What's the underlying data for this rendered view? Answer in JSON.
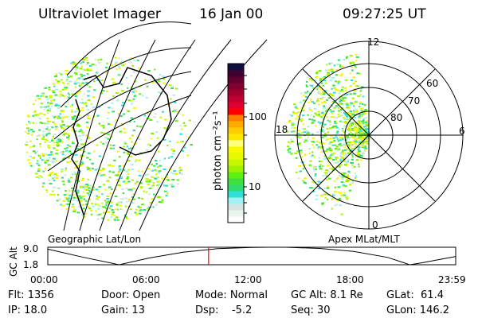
{
  "header": {
    "instrument": "Ultraviolet Imager",
    "date": "16 Jan 00",
    "time": "09:27:25 UT"
  },
  "colorbar": {
    "label": "photon cm⁻²s⁻¹",
    "ticks": [
      "100",
      "10"
    ],
    "colors": [
      "#ffffff",
      "#e8f4ee",
      "#d4e4e2",
      "#a0f0f4",
      "#30e0d8",
      "#30dc70",
      "#40e040",
      "#60f010",
      "#a0f000",
      "#c8f800",
      "#e8f800",
      "#f8f800",
      "#ffff80",
      "#ffe800",
      "#ffcc00",
      "#ffaa00",
      "#ff8000",
      "#ff0000",
      "#e00030",
      "#c00030",
      "#a00030",
      "#800030",
      "#600030",
      "#400030",
      "#101040"
    ]
  },
  "left_panel": {
    "label": "Geographic Lat/Lon"
  },
  "right_panel": {
    "label": "Apex MLat/MLT",
    "mlt_labels": [
      "12",
      "6",
      "0",
      "18"
    ],
    "mlat_labels": [
      "60",
      "70",
      "80"
    ]
  },
  "chart_data": {
    "type": "line",
    "title": "",
    "ylabel": "GC Alt",
    "yticks": [
      "9.0",
      "1.8"
    ],
    "ylim": [
      1.8,
      9.0
    ],
    "xticks": [
      "00:00",
      "06:00",
      "12:00",
      "18:00",
      "23:59"
    ],
    "xlim": [
      0,
      24
    ],
    "x": [
      0,
      2,
      4.2,
      6,
      8,
      10,
      12,
      13,
      14,
      16,
      18,
      20,
      21.3,
      22,
      24
    ],
    "y": [
      8.2,
      5.0,
      1.8,
      4.6,
      7.0,
      8.4,
      8.9,
      9.0,
      9.0,
      8.5,
      7.3,
      4.8,
      1.8,
      2.6,
      5.2
    ],
    "current_time_marker": 9.46,
    "marker_color": "#ff0000"
  },
  "status": {
    "flt": "Flt: 1356",
    "ip": "IP: 18.0",
    "door": "Door: Open",
    "gain": "Gain: 13",
    "mode": "Mode: Normal",
    "dsp": "Dsp:    -5.2",
    "gcalt": "GC Alt: 8.1 Re",
    "seq": "Seq: 30",
    "glat": "GLat:  61.4",
    "glon": "GLon: 146.2"
  }
}
